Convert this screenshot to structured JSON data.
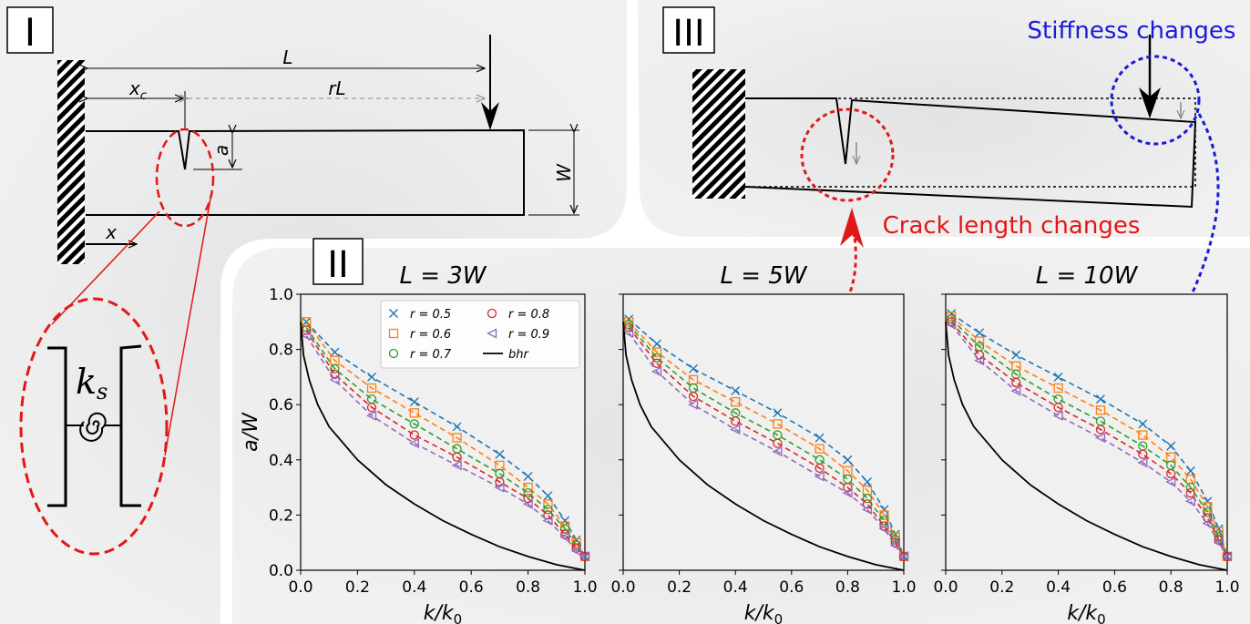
{
  "panels": {
    "one": {
      "label": "I",
      "dims": {
        "L": "L",
        "xc": "x",
        "xc_sub": "c",
        "rL": "rL",
        "a": "a",
        "W": "W",
        "x": "x"
      },
      "spring": {
        "k": "k",
        "sub": "s"
      }
    },
    "two": {
      "label": "II"
    },
    "three": {
      "label": "III",
      "stiffness_text": "Stiffness changes",
      "crack_text": "Crack length changes",
      "colors": {
        "stiffness": "#1a1ad8",
        "crack": "#e01818"
      }
    }
  },
  "legend": {
    "entries": [
      {
        "label": "r = 0.5",
        "color": "#1f77b4",
        "marker": "x"
      },
      {
        "label": "r = 0.6",
        "color": "#ff7f0e",
        "marker": "square"
      },
      {
        "label": "r = 0.7",
        "color": "#2ca02c",
        "marker": "circle"
      },
      {
        "label": "r = 0.8",
        "color": "#d62728",
        "marker": "circle"
      },
      {
        "label": "r = 0.9",
        "color": "#9467bd",
        "marker": "triangle-left"
      },
      {
        "label": "bhr",
        "color": "#000000",
        "marker": "line"
      }
    ]
  },
  "chart_data": [
    {
      "type": "line",
      "title": "L = 3W",
      "xlabel": "k/k0",
      "ylabel": "a/W",
      "xlim": [
        0,
        1
      ],
      "ylim": [
        0,
        1
      ],
      "xticks": [
        "0.0",
        "0.2",
        "0.4",
        "0.6",
        "0.8",
        "1.0"
      ],
      "yticks": [
        "0.0",
        "0.2",
        "0.4",
        "0.6",
        "0.8",
        "1.0"
      ],
      "series": [
        {
          "name": "r = 0.5",
          "x": [
            0.02,
            0.12,
            0.25,
            0.4,
            0.55,
            0.7,
            0.8,
            0.87,
            0.93,
            0.97,
            1.0
          ],
          "y": [
            0.9,
            0.79,
            0.7,
            0.61,
            0.52,
            0.42,
            0.34,
            0.27,
            0.18,
            0.11,
            0.05
          ]
        },
        {
          "name": "r = 0.6",
          "x": [
            0.02,
            0.12,
            0.25,
            0.4,
            0.55,
            0.7,
            0.8,
            0.87,
            0.93,
            0.97,
            1.0
          ],
          "y": [
            0.9,
            0.76,
            0.66,
            0.57,
            0.48,
            0.38,
            0.3,
            0.24,
            0.16,
            0.1,
            0.05
          ]
        },
        {
          "name": "r = 0.7",
          "x": [
            0.02,
            0.12,
            0.25,
            0.4,
            0.55,
            0.7,
            0.8,
            0.87,
            0.93,
            0.97,
            1.0
          ],
          "y": [
            0.88,
            0.73,
            0.62,
            0.53,
            0.44,
            0.35,
            0.28,
            0.22,
            0.15,
            0.09,
            0.05
          ]
        },
        {
          "name": "r = 0.8",
          "x": [
            0.02,
            0.12,
            0.25,
            0.4,
            0.55,
            0.7,
            0.8,
            0.87,
            0.93,
            0.97,
            1.0
          ],
          "y": [
            0.87,
            0.71,
            0.59,
            0.49,
            0.41,
            0.32,
            0.26,
            0.2,
            0.13,
            0.08,
            0.05
          ]
        },
        {
          "name": "r = 0.9",
          "x": [
            0.02,
            0.12,
            0.25,
            0.4,
            0.55,
            0.7,
            0.8,
            0.87,
            0.93,
            0.97,
            1.0
          ],
          "y": [
            0.85,
            0.69,
            0.56,
            0.46,
            0.38,
            0.3,
            0.24,
            0.18,
            0.12,
            0.07,
            0.05
          ]
        },
        {
          "name": "bhr",
          "x": [
            0.0,
            0.01,
            0.03,
            0.06,
            0.1,
            0.2,
            0.3,
            0.4,
            0.5,
            0.6,
            0.7,
            0.8,
            0.9,
            1.0
          ],
          "y": [
            0.9,
            0.78,
            0.69,
            0.6,
            0.52,
            0.4,
            0.31,
            0.24,
            0.18,
            0.13,
            0.085,
            0.05,
            0.02,
            0.0
          ]
        }
      ]
    },
    {
      "type": "line",
      "title": "L = 5W",
      "xlabel": "k/k0",
      "ylabel": "",
      "xlim": [
        0,
        1
      ],
      "ylim": [
        0,
        1
      ],
      "xticks": [
        "0.0",
        "0.2",
        "0.4",
        "0.6",
        "0.8",
        "1.0"
      ],
      "series": [
        {
          "name": "r = 0.5",
          "x": [
            0.02,
            0.12,
            0.25,
            0.4,
            0.55,
            0.7,
            0.8,
            0.87,
            0.93,
            0.97,
            1.0
          ],
          "y": [
            0.91,
            0.82,
            0.73,
            0.65,
            0.57,
            0.48,
            0.4,
            0.32,
            0.22,
            0.13,
            0.05
          ]
        },
        {
          "name": "r = 0.6",
          "x": [
            0.02,
            0.12,
            0.25,
            0.4,
            0.55,
            0.7,
            0.8,
            0.87,
            0.93,
            0.97,
            1.0
          ],
          "y": [
            0.9,
            0.79,
            0.69,
            0.61,
            0.53,
            0.44,
            0.36,
            0.29,
            0.2,
            0.12,
            0.05
          ]
        },
        {
          "name": "r = 0.7",
          "x": [
            0.02,
            0.12,
            0.25,
            0.4,
            0.55,
            0.7,
            0.8,
            0.87,
            0.93,
            0.97,
            1.0
          ],
          "y": [
            0.89,
            0.77,
            0.66,
            0.57,
            0.49,
            0.4,
            0.33,
            0.26,
            0.18,
            0.11,
            0.05
          ]
        },
        {
          "name": "r = 0.8",
          "x": [
            0.02,
            0.12,
            0.25,
            0.4,
            0.55,
            0.7,
            0.8,
            0.87,
            0.93,
            0.97,
            1.0
          ],
          "y": [
            0.88,
            0.75,
            0.63,
            0.54,
            0.46,
            0.37,
            0.3,
            0.24,
            0.16,
            0.1,
            0.05
          ]
        },
        {
          "name": "r = 0.9",
          "x": [
            0.02,
            0.12,
            0.25,
            0.4,
            0.55,
            0.7,
            0.8,
            0.87,
            0.93,
            0.97,
            1.0
          ],
          "y": [
            0.86,
            0.72,
            0.6,
            0.51,
            0.43,
            0.34,
            0.28,
            0.22,
            0.15,
            0.09,
            0.05
          ]
        },
        {
          "name": "bhr",
          "x": [
            0.0,
            0.01,
            0.03,
            0.06,
            0.1,
            0.2,
            0.3,
            0.4,
            0.5,
            0.6,
            0.7,
            0.8,
            0.9,
            1.0
          ],
          "y": [
            0.9,
            0.78,
            0.69,
            0.6,
            0.52,
            0.4,
            0.31,
            0.24,
            0.18,
            0.13,
            0.085,
            0.05,
            0.02,
            0.0
          ]
        }
      ]
    },
    {
      "type": "line",
      "title": "L = 10W",
      "xlabel": "k/k0",
      "ylabel": "",
      "xlim": [
        0,
        1
      ],
      "ylim": [
        0,
        1
      ],
      "xticks": [
        "0.0",
        "0.2",
        "0.4",
        "0.6",
        "0.8",
        "1.0"
      ],
      "series": [
        {
          "name": "r = 0.5",
          "x": [
            0.02,
            0.12,
            0.25,
            0.4,
            0.55,
            0.7,
            0.8,
            0.87,
            0.93,
            0.97,
            1.0
          ],
          "y": [
            0.93,
            0.86,
            0.78,
            0.7,
            0.62,
            0.53,
            0.45,
            0.36,
            0.25,
            0.15,
            0.05
          ]
        },
        {
          "name": "r = 0.6",
          "x": [
            0.02,
            0.12,
            0.25,
            0.4,
            0.55,
            0.7,
            0.8,
            0.87,
            0.93,
            0.97,
            1.0
          ],
          "y": [
            0.92,
            0.83,
            0.74,
            0.66,
            0.58,
            0.49,
            0.41,
            0.33,
            0.23,
            0.14,
            0.05
          ]
        },
        {
          "name": "r = 0.7",
          "x": [
            0.02,
            0.12,
            0.25,
            0.4,
            0.55,
            0.7,
            0.8,
            0.87,
            0.93,
            0.97,
            1.0
          ],
          "y": [
            0.91,
            0.81,
            0.71,
            0.62,
            0.54,
            0.45,
            0.38,
            0.3,
            0.21,
            0.12,
            0.05
          ]
        },
        {
          "name": "r = 0.8",
          "x": [
            0.02,
            0.12,
            0.25,
            0.4,
            0.55,
            0.7,
            0.8,
            0.87,
            0.93,
            0.97,
            1.0
          ],
          "y": [
            0.9,
            0.78,
            0.68,
            0.59,
            0.51,
            0.42,
            0.35,
            0.28,
            0.19,
            0.11,
            0.05
          ]
        },
        {
          "name": "r = 0.9",
          "x": [
            0.02,
            0.12,
            0.25,
            0.4,
            0.55,
            0.7,
            0.8,
            0.87,
            0.93,
            0.97,
            1.0
          ],
          "y": [
            0.89,
            0.76,
            0.65,
            0.56,
            0.48,
            0.39,
            0.32,
            0.25,
            0.17,
            0.1,
            0.05
          ]
        },
        {
          "name": "bhr",
          "x": [
            0.0,
            0.01,
            0.03,
            0.06,
            0.1,
            0.2,
            0.3,
            0.4,
            0.5,
            0.6,
            0.7,
            0.8,
            0.9,
            1.0
          ],
          "y": [
            0.9,
            0.78,
            0.69,
            0.6,
            0.52,
            0.4,
            0.31,
            0.24,
            0.18,
            0.13,
            0.085,
            0.05,
            0.02,
            0.0
          ]
        }
      ]
    }
  ]
}
